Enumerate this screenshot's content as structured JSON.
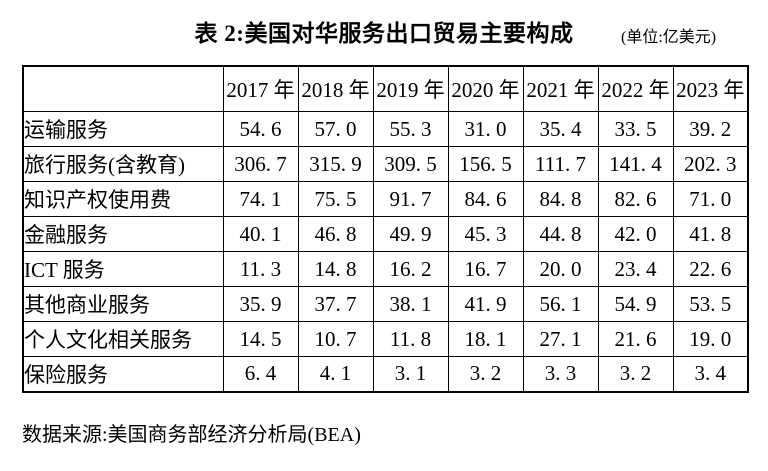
{
  "page": {
    "title": "表 2:美国对华服务出口贸易主要构成",
    "unit_note": "(单位:亿美元)",
    "source_note": "数据来源:美国商务部经济分析局(BEA)"
  },
  "table": {
    "corner_label": "",
    "columns": [
      "2017 年",
      "2018 年",
      "2019 年",
      "2020 年",
      "2021 年",
      "2022 年",
      "2023 年"
    ],
    "rows": [
      {
        "label": "运输服务",
        "values": [
          54.6,
          57.0,
          55.3,
          31.0,
          35.4,
          33.5,
          39.2
        ]
      },
      {
        "label": "旅行服务(含教育)",
        "values": [
          306.7,
          315.9,
          309.5,
          156.5,
          111.7,
          141.4,
          202.3
        ]
      },
      {
        "label": "知识产权使用费",
        "values": [
          74.1,
          75.5,
          91.7,
          84.6,
          84.8,
          82.6,
          71.0
        ]
      },
      {
        "label": "金融服务",
        "values": [
          40.1,
          46.8,
          49.9,
          45.3,
          44.8,
          42.0,
          41.8
        ]
      },
      {
        "label": "ICT 服务",
        "values": [
          11.3,
          14.8,
          16.2,
          16.7,
          20.0,
          23.4,
          22.6
        ]
      },
      {
        "label": "其他商业服务",
        "values": [
          35.9,
          37.7,
          38.1,
          41.9,
          56.1,
          54.9,
          53.5
        ]
      },
      {
        "label": "个人文化相关服务",
        "values": [
          14.5,
          10.7,
          11.8,
          18.1,
          27.1,
          21.6,
          19.0
        ]
      },
      {
        "label": "保险服务",
        "values": [
          6.4,
          4.1,
          3.1,
          3.2,
          3.3,
          3.2,
          3.4
        ]
      }
    ]
  },
  "colors": {
    "text": "#000000",
    "border": "#000000",
    "background": "#ffffff"
  }
}
